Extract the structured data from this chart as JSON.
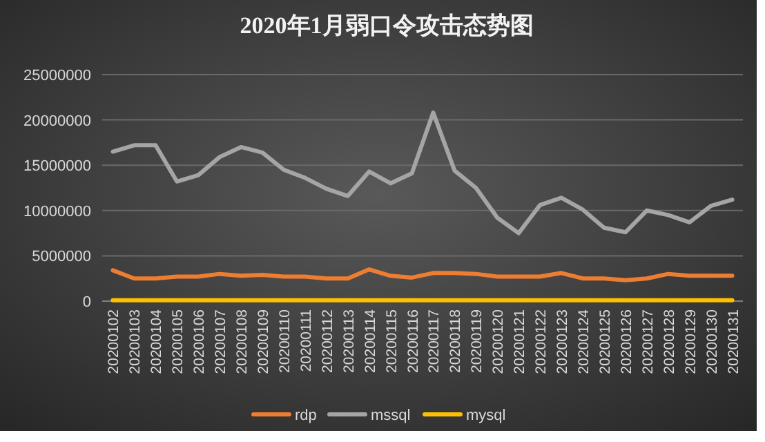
{
  "chart_data": {
    "type": "line",
    "title": "2020年1月弱口令攻击态势图",
    "categories": [
      "20200102",
      "20200103",
      "20200104",
      "20200105",
      "20200106",
      "20200107",
      "20200108",
      "20200109",
      "20200110",
      "20200111",
      "20200112",
      "20200113",
      "20200114",
      "20200115",
      "20200116",
      "20200117",
      "20200118",
      "20200119",
      "20200120",
      "20200121",
      "20200122",
      "20200123",
      "20200124",
      "20200125",
      "20200126",
      "20200127",
      "20200128",
      "20200129",
      "20200130",
      "20200131"
    ],
    "series": [
      {
        "name": "rdp",
        "color": "#ed7d31",
        "values": [
          3400000,
          2500000,
          2500000,
          2700000,
          2700000,
          3000000,
          2800000,
          2900000,
          2700000,
          2700000,
          2500000,
          2500000,
          3500000,
          2800000,
          2600000,
          3100000,
          3100000,
          3000000,
          2700000,
          2700000,
          2700000,
          3100000,
          2500000,
          2500000,
          2300000,
          2500000,
          3000000,
          2800000,
          2800000,
          2800000
        ]
      },
      {
        "name": "mssql",
        "color": "#a5a5a5",
        "values": [
          16500000,
          17200000,
          17200000,
          13200000,
          13900000,
          15900000,
          17000000,
          16400000,
          14500000,
          13600000,
          12400000,
          11600000,
          14300000,
          13000000,
          14100000,
          20800000,
          14400000,
          12500000,
          9200000,
          7500000,
          10600000,
          11400000,
          10100000,
          8100000,
          7600000,
          10000000,
          9500000,
          8700000,
          10500000,
          11200000
        ]
      },
      {
        "name": "mysql",
        "color": "#ffc000",
        "values": [
          100000,
          100000,
          100000,
          100000,
          100000,
          100000,
          100000,
          100000,
          100000,
          100000,
          100000,
          100000,
          100000,
          100000,
          100000,
          100000,
          100000,
          100000,
          100000,
          100000,
          100000,
          100000,
          100000,
          100000,
          100000,
          100000,
          100000,
          100000,
          100000,
          100000
        ]
      }
    ],
    "ylim": [
      0,
      25000000
    ],
    "yticks": [
      0,
      5000000,
      10000000,
      15000000,
      20000000,
      25000000
    ],
    "grid": "y",
    "legend": "bottom",
    "marker": "none",
    "line_style": "solid"
  }
}
